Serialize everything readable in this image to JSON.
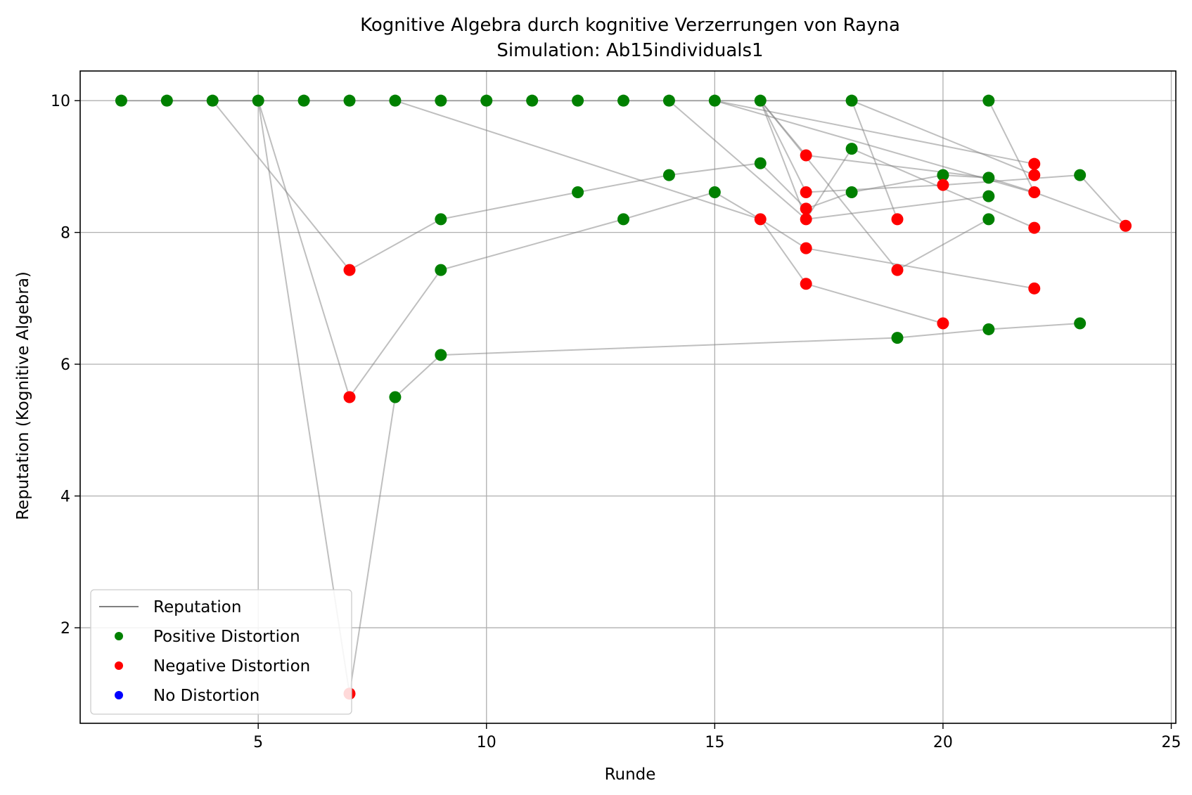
{
  "chart_data": {
    "type": "scatter",
    "title": "Kognitive Algebra durch kognitive Verzerrungen von Rayna",
    "subtitle": "Simulation: Ab15individuals1",
    "xlabel": "Runde",
    "ylabel": "Reputation (Kognitive Algebra)",
    "xlim": [
      1.1,
      25.1
    ],
    "ylim": [
      0.55,
      10.45
    ],
    "xticks": [
      5,
      10,
      15,
      20,
      25
    ],
    "yticks": [
      2,
      4,
      6,
      8,
      10
    ],
    "grid": true,
    "legend_position": "lower-left",
    "legend": [
      {
        "label": "Reputation",
        "kind": "line",
        "color": "#808080"
      },
      {
        "label": "Positive Distortion",
        "kind": "marker",
        "color": "#008000"
      },
      {
        "label": "Negative Distortion",
        "kind": "marker",
        "color": "#ff0000"
      },
      {
        "label": "No Distortion",
        "kind": "marker",
        "color": "#0000ff"
      }
    ],
    "colors": {
      "positive": "#008000",
      "negative": "#ff0000",
      "none": "#0000ff",
      "line": "#808080"
    },
    "series": [
      {
        "points": [
          [
            2,
            10
          ],
          [
            3,
            10
          ],
          [
            4,
            10
          ],
          [
            5,
            10
          ],
          [
            6,
            10
          ],
          [
            7,
            10
          ],
          [
            8,
            10
          ],
          [
            9,
            10
          ],
          [
            10,
            10
          ],
          [
            11,
            10
          ],
          [
            12,
            10
          ],
          [
            13,
            10
          ],
          [
            14,
            10
          ],
          [
            15,
            10
          ],
          [
            16,
            10
          ],
          [
            18,
            10
          ],
          [
            21,
            10
          ]
        ]
      },
      {
        "points": [
          [
            3,
            10
          ],
          [
            4,
            10
          ],
          [
            7,
            7.43
          ],
          [
            9,
            8.2
          ],
          [
            12,
            8.61
          ],
          [
            14,
            8.87
          ],
          [
            16,
            9.05
          ],
          [
            17,
            8.36
          ],
          [
            18,
            8.61
          ],
          [
            20,
            8.87
          ],
          [
            21,
            8.83
          ],
          [
            22,
            8.61
          ],
          [
            24,
            8.1
          ]
        ]
      },
      {
        "points": [
          [
            4,
            10
          ],
          [
            5,
            10
          ],
          [
            7,
            5.5
          ],
          [
            9,
            7.43
          ],
          [
            13,
            8.2
          ],
          [
            15,
            8.61
          ],
          [
            16,
            8.2
          ],
          [
            17,
            7.22
          ],
          [
            20,
            6.62
          ]
        ]
      },
      {
        "points": [
          [
            5,
            10
          ],
          [
            7,
            1
          ],
          [
            8,
            5.5
          ],
          [
            9,
            6.14
          ],
          [
            19,
            6.4
          ],
          [
            21,
            6.53
          ],
          [
            23,
            6.62
          ]
        ]
      },
      {
        "points": [
          [
            8,
            10
          ],
          [
            16,
            8.2
          ],
          [
            17,
            7.76
          ],
          [
            22,
            7.15
          ]
        ]
      },
      {
        "points": [
          [
            14,
            10
          ],
          [
            17,
            8.2
          ],
          [
            18,
            9.27
          ],
          [
            22,
            8.07
          ]
        ]
      },
      {
        "points": [
          [
            15,
            10
          ],
          [
            22,
            9.04
          ]
        ]
      },
      {
        "points": [
          [
            15,
            10
          ],
          [
            22,
            8.6
          ]
        ]
      },
      {
        "points": [
          [
            16,
            10
          ],
          [
            17,
            8.61
          ],
          [
            20,
            8.72
          ],
          [
            23,
            8.87
          ],
          [
            24,
            8.1
          ]
        ]
      },
      {
        "points": [
          [
            16,
            10
          ],
          [
            17,
            8.2
          ],
          [
            21,
            8.55
          ]
        ]
      },
      {
        "points": [
          [
            16,
            10
          ],
          [
            17,
            9.17
          ],
          [
            21,
            8.83
          ]
        ]
      },
      {
        "points": [
          [
            16,
            10
          ],
          [
            19,
            7.43
          ],
          [
            21,
            8.2
          ]
        ]
      },
      {
        "points": [
          [
            18,
            10
          ],
          [
            19,
            8.2
          ]
        ]
      },
      {
        "points": [
          [
            18,
            10
          ],
          [
            22,
            8.87
          ]
        ]
      },
      {
        "points": [
          [
            21,
            10
          ],
          [
            22,
            8.61
          ]
        ]
      }
    ],
    "points": {
      "positive": [
        [
          2,
          10
        ],
        [
          3,
          10
        ],
        [
          4,
          10
        ],
        [
          5,
          10
        ],
        [
          6,
          10
        ],
        [
          7,
          10
        ],
        [
          8,
          10
        ],
        [
          9,
          10
        ],
        [
          10,
          10
        ],
        [
          11,
          10
        ],
        [
          12,
          10
        ],
        [
          13,
          10
        ],
        [
          14,
          10
        ],
        [
          15,
          10
        ],
        [
          16,
          10
        ],
        [
          18,
          10
        ],
        [
          21,
          10
        ],
        [
          9,
          8.2
        ],
        [
          12,
          8.61
        ],
        [
          14,
          8.87
        ],
        [
          16,
          9.05
        ],
        [
          18,
          8.61
        ],
        [
          20,
          8.87
        ],
        [
          21,
          8.83
        ],
        [
          9,
          7.43
        ],
        [
          13,
          8.2
        ],
        [
          15,
          8.61
        ],
        [
          8,
          5.5
        ],
        [
          9,
          6.14
        ],
        [
          19,
          6.4
        ],
        [
          21,
          6.53
        ],
        [
          23,
          6.62
        ],
        [
          18,
          9.27
        ],
        [
          23,
          8.87
        ],
        [
          21,
          8.55
        ],
        [
          21,
          8.2
        ]
      ],
      "negative": [
        [
          7,
          7.43
        ],
        [
          17,
          8.36
        ],
        [
          22,
          8.61
        ],
        [
          24,
          8.1
        ],
        [
          7,
          5.5
        ],
        [
          16,
          8.2
        ],
        [
          17,
          7.22
        ],
        [
          20,
          6.62
        ],
        [
          7,
          1
        ],
        [
          17,
          7.76
        ],
        [
          22,
          7.15
        ],
        [
          17,
          8.2
        ],
        [
          22,
          8.07
        ],
        [
          22,
          9.04
        ],
        [
          17,
          8.61
        ],
        [
          20,
          8.72
        ],
        [
          17,
          9.17
        ],
        [
          19,
          7.43
        ],
        [
          19,
          8.2
        ],
        [
          22,
          8.87
        ]
      ],
      "none": []
    }
  }
}
